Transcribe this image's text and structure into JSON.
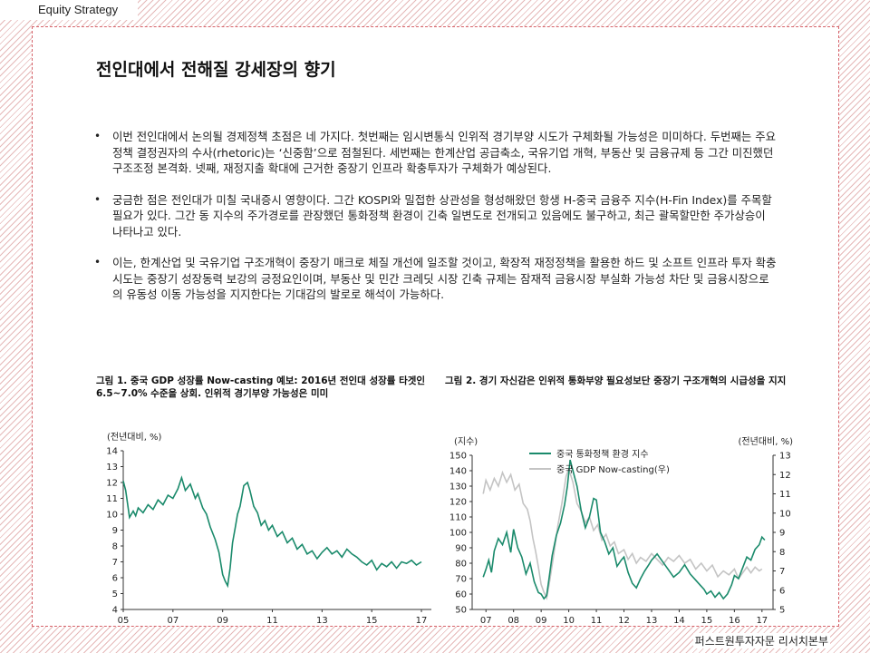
{
  "header": {
    "section_label": "Equity Strategy"
  },
  "page": {
    "title": "전인대에서 전해질 강세장의 향기",
    "bullets": [
      "이번 전인대에서 논의될 경제정책 초점은 네 가지다. 첫번째는 임시변통식 인위적 경기부양 시도가 구체화될 가능성은 미미하다. 두번째는 주요 정책 결정권자의 수사(rhetoric)는 ‘신중함’으로 점철된다. 세번째는 한계산업 공급축소, 국유기업 개혁, 부동산 및 금융규제 등 그간 미진했던 구조조정 본격화. 넷째, 재정지출 확대에 근거한 중장기 인프라 확충투자가 구체화가 예상된다.",
      "궁금한 점은 전인대가 미칠 국내증시 영향이다. 그간 KOSPI와 밀접한 상관성을 형성해왔던 항생 H-중국 금융주 지수(H-Fin Index)를 주목할 필요가 있다. 그간 동 지수의 주가경로를 관장했던 통화정책 환경이 긴축 일변도로 전개되고 있음에도 불구하고, 최근 괄목할만한 주가상승이 나타나고 있다.",
      "이는, 한계산업 및 국유기업 구조개혁이 중장기 매크로 체질 개선에 일조할 것이고, 확장적 재정정책을 활용한 하드 및 소프트 인프라 투자 확충 시도는 중장기 성장동력 보강의 긍정요인이며,  부동산 및 민간 크레딧 시장 긴축 규제는 잠재적 금융시장 부실화 가능성 차단 및 금융시장으로의 유동성 이동 가능성을 지지한다는 기대감의 발로로 해석이 가능하다."
    ]
  },
  "chart_data": [
    {
      "type": "line",
      "title": "그림 1. 중국 GDP 성장률 Now-casting 예보: 2016년 전인대 성장률 타겟인 6.5~7.0% 수준을 상회. 인위적 경기부양 가능성은 미미",
      "ylabel": "(전년대비, %)",
      "ylim": [
        4,
        14
      ],
      "yticks": [
        "14",
        "13",
        "12",
        "11",
        "10",
        "9",
        "8",
        "7",
        "6",
        "5",
        "4"
      ],
      "xlim": [
        2005,
        2017.4
      ],
      "xticks": [
        {
          "v": 2005,
          "label": "05"
        },
        {
          "v": 2007,
          "label": "07"
        },
        {
          "v": 2009,
          "label": "09"
        },
        {
          "v": 2011,
          "label": "11"
        },
        {
          "v": 2013,
          "label": "13"
        },
        {
          "v": 2015,
          "label": "15"
        },
        {
          "v": 2017,
          "label": "17"
        }
      ],
      "color": "#1a8a6b",
      "series": [
        {
          "x": [
            2005.0,
            2005.1,
            2005.25,
            2005.4,
            2005.5,
            2005.6,
            2005.8,
            2006.0,
            2006.2,
            2006.4,
            2006.6,
            2006.8,
            2007.0,
            2007.2,
            2007.35,
            2007.5,
            2007.7,
            2007.9,
            2008.0,
            2008.2,
            2008.35,
            2008.5,
            2008.7,
            2008.85,
            2009.0,
            2009.1,
            2009.2,
            2009.3,
            2009.4,
            2009.5,
            2009.6,
            2009.7,
            2009.85,
            2010.0,
            2010.1,
            2010.25,
            2010.4,
            2010.55,
            2010.7,
            2010.85,
            2011.0,
            2011.2,
            2011.4,
            2011.6,
            2011.8,
            2012.0,
            2012.2,
            2012.4,
            2012.6,
            2012.8,
            2013.0,
            2013.2,
            2013.4,
            2013.6,
            2013.8,
            2014.0,
            2014.2,
            2014.4,
            2014.6,
            2014.8,
            2015.0,
            2015.2,
            2015.4,
            2015.6,
            2015.8,
            2016.0,
            2016.2,
            2016.4,
            2016.6,
            2016.8,
            2017.0
          ],
          "y": [
            12.1,
            11.5,
            9.8,
            10.2,
            9.9,
            10.4,
            10.1,
            10.6,
            10.3,
            10.9,
            10.6,
            11.2,
            11.0,
            11.6,
            12.3,
            11.5,
            11.9,
            11.0,
            11.3,
            10.4,
            10.0,
            9.2,
            8.4,
            7.6,
            6.2,
            5.8,
            5.5,
            6.6,
            8.2,
            9.1,
            10.0,
            10.5,
            11.8,
            12.0,
            11.5,
            10.5,
            10.1,
            9.3,
            9.6,
            9.0,
            9.3,
            8.6,
            8.9,
            8.2,
            8.5,
            7.8,
            8.1,
            7.5,
            7.7,
            7.2,
            7.6,
            7.9,
            7.5,
            7.7,
            7.3,
            7.8,
            7.5,
            7.3,
            7.0,
            6.8,
            7.1,
            6.5,
            6.9,
            6.7,
            7.0,
            6.6,
            7.0,
            6.9,
            7.1,
            6.8,
            7.0
          ]
        }
      ]
    },
    {
      "type": "line",
      "title": "그림 2. 경기 자신감은 인위적 통화부양 필요성보단 중장기 구조개혁의 시급성을 지지",
      "ylabel_left": "(지수)",
      "ylabel_right": "(전년대비, %)",
      "ylim_left": [
        50,
        150
      ],
      "ylim_right": [
        5,
        13
      ],
      "yticks_left": [
        "150",
        "140",
        "130",
        "120",
        "110",
        "100",
        "90",
        "80",
        "70",
        "60",
        "50"
      ],
      "yticks_right": [
        "13",
        "12",
        "11",
        "10",
        "9",
        "8",
        "7",
        "6",
        "5"
      ],
      "xlim": [
        2006.5,
        2017.4
      ],
      "xticks": [
        {
          "v": 2007,
          "label": "07"
        },
        {
          "v": 2008,
          "label": "08"
        },
        {
          "v": 2009,
          "label": "09"
        },
        {
          "v": 2010,
          "label": "10"
        },
        {
          "v": 2011,
          "label": "11"
        },
        {
          "v": 2012,
          "label": "12"
        },
        {
          "v": 2013,
          "label": "13"
        },
        {
          "v": 2014,
          "label": "14"
        },
        {
          "v": 2015,
          "label": "15"
        },
        {
          "v": 2016,
          "label": "16"
        },
        {
          "v": 2017,
          "label": "17"
        }
      ],
      "legend": [
        "중국 통화정책 환경 지수",
        "중국 GDP Now-casting(우)"
      ],
      "series": [
        {
          "name": "중국 통화정책 환경 지수",
          "axis": "left",
          "color": "#1a8a6b",
          "x": [
            2006.9,
            2007.0,
            2007.1,
            2007.2,
            2007.3,
            2007.45,
            2007.6,
            2007.75,
            2007.9,
            2008.0,
            2008.15,
            2008.3,
            2008.45,
            2008.6,
            2008.75,
            2008.9,
            2009.0,
            2009.1,
            2009.2,
            2009.3,
            2009.4,
            2009.55,
            2009.7,
            2009.85,
            2009.95,
            2010.05,
            2010.15,
            2010.3,
            2010.45,
            2010.6,
            2010.75,
            2010.9,
            2011.0,
            2011.15,
            2011.3,
            2011.45,
            2011.6,
            2011.75,
            2011.9,
            2012.0,
            2012.15,
            2012.3,
            2012.45,
            2012.6,
            2012.75,
            2012.9,
            2013.0,
            2013.2,
            2013.4,
            2013.6,
            2013.8,
            2014.0,
            2014.2,
            2014.4,
            2014.6,
            2014.75,
            2014.9,
            2015.0,
            2015.15,
            2015.3,
            2015.45,
            2015.6,
            2015.75,
            2015.9,
            2016.0,
            2016.15,
            2016.3,
            2016.45,
            2016.6,
            2016.75,
            2016.9,
            2017.0,
            2017.1
          ],
          "y": [
            71,
            76,
            82,
            74,
            88,
            96,
            92,
            100,
            87,
            102,
            90,
            84,
            73,
            80,
            68,
            61,
            60,
            57,
            59,
            72,
            85,
            98,
            106,
            118,
            130,
            147,
            140,
            130,
            114,
            103,
            110,
            122,
            121,
            100,
            94,
            86,
            90,
            78,
            82,
            84,
            74,
            67,
            64,
            70,
            75,
            79,
            82,
            86,
            81,
            76,
            71,
            74,
            79,
            73,
            69,
            66,
            63,
            60,
            62,
            58,
            61,
            57,
            60,
            66,
            72,
            70,
            77,
            84,
            82,
            89,
            92,
            97,
            95
          ]
        },
        {
          "name": "중국 GDP Now-casting(우)",
          "axis": "right",
          "color": "#c4c4c4",
          "x": [
            2006.9,
            2007.0,
            2007.15,
            2007.3,
            2007.45,
            2007.6,
            2007.75,
            2007.9,
            2008.05,
            2008.2,
            2008.35,
            2008.5,
            2008.6,
            2008.7,
            2008.8,
            2008.9,
            2009.0,
            2009.1,
            2009.2,
            2009.3,
            2009.45,
            2009.6,
            2009.75,
            2009.9,
            2010.0,
            2010.15,
            2010.3,
            2010.45,
            2010.6,
            2010.75,
            2010.9,
            2011.05,
            2011.2,
            2011.35,
            2011.5,
            2011.65,
            2011.8,
            2012.0,
            2012.15,
            2012.3,
            2012.45,
            2012.6,
            2012.8,
            2013.0,
            2013.2,
            2013.4,
            2013.6,
            2013.8,
            2014.0,
            2014.2,
            2014.4,
            2014.6,
            2014.8,
            2015.0,
            2015.2,
            2015.4,
            2015.6,
            2015.8,
            2016.0,
            2016.15,
            2016.3,
            2016.45,
            2016.6,
            2016.75,
            2016.9,
            2017.0
          ],
          "y": [
            11.0,
            11.7,
            11.2,
            11.8,
            11.4,
            12.1,
            11.6,
            12.0,
            11.2,
            11.5,
            10.5,
            10.2,
            9.6,
            8.7,
            8.0,
            7.2,
            6.3,
            5.9,
            5.6,
            6.4,
            7.8,
            9.3,
            10.5,
            11.9,
            12.3,
            11.6,
            10.5,
            10.1,
            9.5,
            9.8,
            9.1,
            9.4,
            8.6,
            8.9,
            8.3,
            8.5,
            7.9,
            8.1,
            7.6,
            7.9,
            7.4,
            7.7,
            7.5,
            7.9,
            7.6,
            7.3,
            7.7,
            7.5,
            7.8,
            7.4,
            7.6,
            7.1,
            7.4,
            7.0,
            7.3,
            6.7,
            7.0,
            6.8,
            7.1,
            6.6,
            6.9,
            7.2,
            6.9,
            7.2,
            7.0,
            7.1
          ]
        }
      ]
    }
  ],
  "footer": {
    "company": "퍼스트원투자자문 리서치본부"
  }
}
